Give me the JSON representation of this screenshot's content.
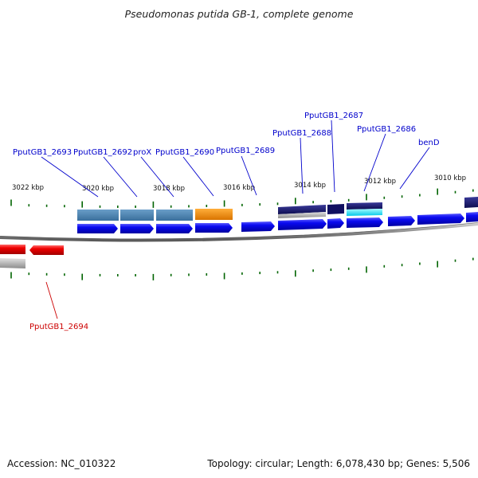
{
  "title": "Pseudomonas putida GB-1, complete genome",
  "footer": {
    "accession": "Accession: NC_010322",
    "summary": "Topology: circular; Length: 6,078,430 bp; Genes: 5,506"
  },
  "ruler": [
    "3022 kbp",
    "3020 kbp",
    "3018 kbp",
    "3016 kbp",
    "3014 kbp",
    "3012 kbp",
    "3010 kbp"
  ],
  "labels": [
    {
      "text": "PputGB1_2693",
      "color": "#0000cc"
    },
    {
      "text": "PputGB1_2692",
      "color": "#0000cc"
    },
    {
      "text": "proX",
      "color": "#0000cc"
    },
    {
      "text": "PputGB1_2690",
      "color": "#0000cc"
    },
    {
      "text": "PputGB1_2689",
      "color": "#0000cc"
    },
    {
      "text": "PputGB1_2688",
      "color": "#0000cc"
    },
    {
      "text": "PputGB1_2687",
      "color": "#0000cc"
    },
    {
      "text": "PputGB1_2686",
      "color": "#0000cc"
    },
    {
      "text": "benD",
      "color": "#0000cc"
    },
    {
      "text": "PputGB1_2694",
      "color": "#cc0000"
    }
  ],
  "colors": {
    "forward_gene": "#1010ee",
    "reverse_gene": "#ee0000",
    "cog_steelblue": "#4682b4",
    "cog_orange": "#f28c00",
    "cog_navy": "#1a1a6e",
    "cog_cyan": "#00e5ff",
    "gc_gray": "#a9a9a9",
    "tick_green": "#006400",
    "backbone": "#808080"
  }
}
